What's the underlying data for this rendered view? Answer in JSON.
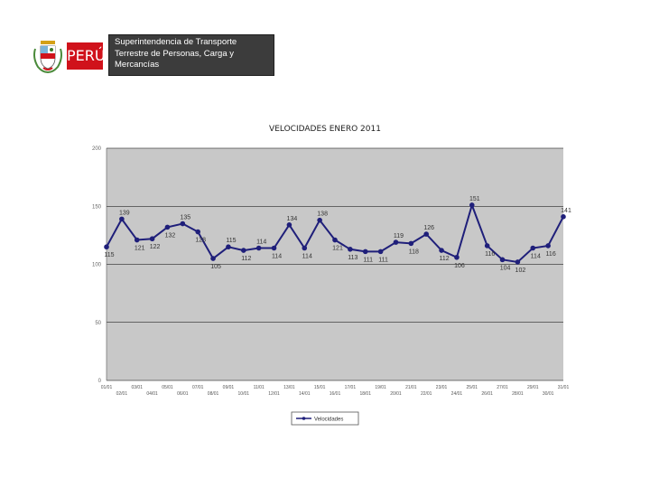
{
  "header": {
    "country_label": "PERÚ",
    "agency_lines": [
      "Superintendencia de Transporte",
      "Terrestre de Personas, Carga y",
      "Mercancías"
    ],
    "brand_colors": {
      "red": "#d0121b",
      "dark": "#3c3c3c"
    },
    "emblem_icon": "coat-of-arms-icon"
  },
  "chart_data": {
    "type": "line",
    "title": "VELOCIDADES ENERO 2011",
    "ylim": [
      0,
      200
    ],
    "yticks": [
      "0",
      "50",
      "100",
      "150",
      "200"
    ],
    "grid": true,
    "legend": {
      "position": "bottom",
      "entries": [
        "Velocidades"
      ]
    },
    "colors": {
      "line": "#1f1f7a",
      "plot_bg": "#c8c8c8",
      "grid": "#000000"
    },
    "x_labels": [
      "01/01",
      "02/01",
      "03/01",
      "04/01",
      "05/01",
      "06/01",
      "07/01",
      "08/01",
      "09/01",
      "10/01",
      "11/01",
      "12/01",
      "13/01",
      "14/01",
      "15/01",
      "16/01",
      "17/01",
      "18/01",
      "19/01",
      "20/01",
      "21/01",
      "22/01",
      "23/01",
      "24/01",
      "25/01",
      "26/01",
      "27/01",
      "28/01",
      "29/01",
      "30/01",
      "31/01"
    ],
    "series": [
      {
        "name": "Velocidades",
        "values": [
          115,
          139,
          121,
          122,
          132,
          135,
          128,
          105,
          115,
          112,
          114,
          114,
          134,
          114,
          138,
          121,
          113,
          111,
          111,
          119,
          118,
          126,
          112,
          106,
          151,
          116,
          104,
          102,
          114,
          116,
          141
        ],
        "labels": [
          "115",
          "139",
          "121",
          "122",
          "132",
          "135",
          "128",
          "105",
          "115",
          "112",
          "114",
          "114",
          "134",
          "114",
          "138",
          "121",
          "113",
          "111",
          "111",
          "119",
          "118",
          "126",
          "112",
          "106",
          "151",
          "116",
          "104",
          "102",
          "114",
          "116",
          "141"
        ]
      }
    ]
  }
}
